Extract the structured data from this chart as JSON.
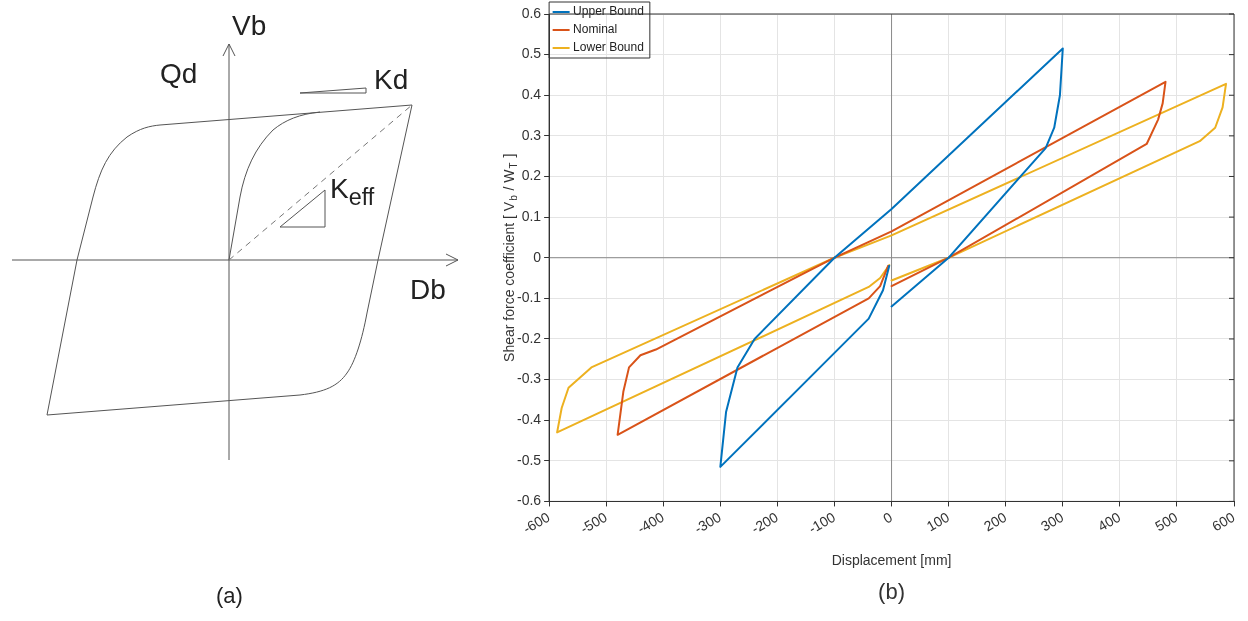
{
  "chart_data": [
    {
      "type": "other",
      "xlabel": "Db",
      "ylabel": "Vb",
      "annotations": [
        "Qd",
        "Kd",
        "K$_{eff}$",
        "(a)"
      ]
    },
    {
      "type": "line",
      "xlabel": "Displacement [mm]",
      "ylabel": "Shear force coefficient [ V$_{b}$ / W$_{T}$ ]",
      "legend": "top left",
      "grid": true,
      "line_style": "solid",
      "marker": "none",
      "xlim": [
        -600,
        600
      ],
      "xticks": [
        -600,
        -500,
        -400,
        -300,
        -200,
        -100,
        0,
        100,
        200,
        300,
        400,
        500,
        600
      ],
      "ylim": [
        -0.6,
        0.6
      ],
      "yticks": [
        -0.6,
        -0.5,
        -0.4,
        -0.3,
        -0.2,
        -0.1,
        0,
        0.1,
        0.2,
        0.3,
        0.4,
        0.5,
        0.6
      ],
      "annotations": [
        "(b)"
      ],
      "series": [
        {
          "name": "Upper Bound",
          "color": "#0072bd",
          "x": [
            -4,
            -15,
            -40,
            -300,
            -290,
            -270,
            -240,
            -100,
            0,
            300,
            295,
            285,
            270,
            100,
            0
          ],
          "values": [
            -0.02,
            -0.08,
            -0.15,
            -0.515,
            -0.38,
            -0.27,
            -0.2,
            0,
            0.12,
            0.515,
            0.4,
            0.32,
            0.27,
            0,
            -0.12
          ]
        },
        {
          "name": "Nominal",
          "color": "#d95319",
          "x": [
            -6,
            -20,
            -40,
            -480,
            -470,
            -460,
            -440,
            -413,
            -100,
            0,
            480,
            475,
            467,
            447,
            100,
            0
          ],
          "values": [
            -0.02,
            -0.07,
            -0.1,
            -0.436,
            -0.33,
            -0.27,
            -0.24,
            -0.226,
            0,
            0.065,
            0.433,
            0.38,
            0.34,
            0.28,
            0,
            -0.07
          ]
        },
        {
          "name": "Lower Bound",
          "color": "#edb120",
          "x": [
            -4,
            -20,
            -40,
            -586,
            -578,
            -566,
            -526,
            -100,
            0,
            586,
            580,
            567,
            540,
            100,
            0
          ],
          "values": [
            -0.018,
            -0.05,
            -0.072,
            -0.43,
            -0.37,
            -0.32,
            -0.27,
            0,
            0.055,
            0.428,
            0.37,
            0.32,
            0.287,
            0,
            -0.056
          ]
        }
      ]
    }
  ]
}
